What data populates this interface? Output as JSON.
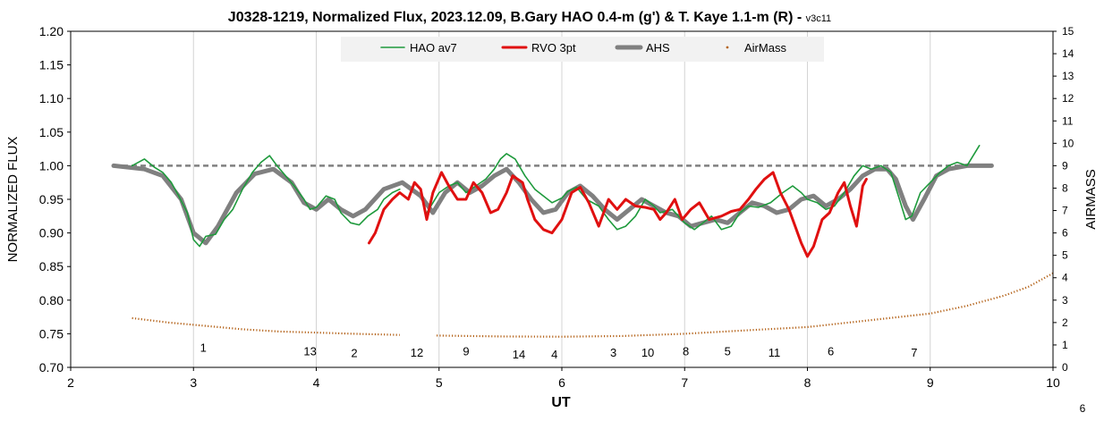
{
  "chart_data": {
    "type": "line",
    "title": "J0328-1219, Normalized Flux, 2023.12.09, B.Gary HAO 0.4-m (g') & T. Kaye 1.1-m (R)",
    "title_suffix": " - ",
    "title_version": "v3c11",
    "xlabel": "UT",
    "ylabel": "NORMALIZED FLUX",
    "y2label": "AIRMASS",
    "xlim": [
      2,
      10
    ],
    "ylim": [
      0.7,
      1.2
    ],
    "y2lim": [
      0,
      15
    ],
    "x_ticks": [
      "2",
      "3",
      "4",
      "5",
      "6",
      "7",
      "8",
      "9",
      "10"
    ],
    "y_ticks": [
      "0.70",
      "0.75",
      "0.80",
      "0.85",
      "0.90",
      "0.95",
      "1.00",
      "1.05",
      "1.10",
      "1.15",
      "1.20"
    ],
    "y2_ticks": [
      "0",
      "1",
      "2",
      "3",
      "4",
      "5",
      "6",
      "7",
      "8",
      "9",
      "10",
      "11",
      "12",
      "13",
      "14",
      "15"
    ],
    "grid": "vertical",
    "legend_position": "top-center",
    "page_number": "6",
    "reference_line": {
      "y": 1.0,
      "x": [
        2.35,
        9.5
      ]
    },
    "series": [
      {
        "name": "HAO av7",
        "color": "#1e9a3c",
        "axis": "left",
        "points": [
          [
            2.5,
            1.0
          ],
          [
            2.6,
            1.01
          ],
          [
            2.68,
            0.998
          ],
          [
            2.75,
            0.99
          ],
          [
            2.82,
            0.975
          ],
          [
            2.88,
            0.955
          ],
          [
            2.95,
            0.93
          ],
          [
            3.0,
            0.89
          ],
          [
            3.05,
            0.88
          ],
          [
            3.1,
            0.895
          ],
          [
            3.18,
            0.898
          ],
          [
            3.25,
            0.92
          ],
          [
            3.32,
            0.935
          ],
          [
            3.4,
            0.965
          ],
          [
            3.48,
            0.99
          ],
          [
            3.55,
            1.005
          ],
          [
            3.62,
            1.015
          ],
          [
            3.68,
            1.0
          ],
          [
            3.75,
            0.985
          ],
          [
            3.82,
            0.97
          ],
          [
            3.9,
            0.95
          ],
          [
            3.95,
            0.935
          ],
          [
            4.0,
            0.938
          ],
          [
            4.08,
            0.955
          ],
          [
            4.15,
            0.95
          ],
          [
            4.2,
            0.93
          ],
          [
            4.28,
            0.915
          ],
          [
            4.35,
            0.912
          ],
          [
            4.42,
            0.925
          ],
          [
            4.5,
            0.935
          ],
          [
            4.55,
            0.95
          ],
          [
            4.62,
            0.96
          ],
          [
            4.68,
            0.965
          ]
        ]
      },
      {
        "name": "HAO av7",
        "color": "#1e9a3c",
        "axis": "left",
        "points": [
          [
            4.9,
            0.93
          ],
          [
            4.95,
            0.945
          ],
          [
            5.0,
            0.96
          ],
          [
            5.08,
            0.97
          ],
          [
            5.15,
            0.975
          ],
          [
            5.22,
            0.96
          ],
          [
            5.3,
            0.97
          ],
          [
            5.38,
            0.98
          ],
          [
            5.45,
            0.995
          ],
          [
            5.5,
            1.01
          ],
          [
            5.55,
            1.018
          ],
          [
            5.62,
            1.01
          ],
          [
            5.7,
            0.985
          ],
          [
            5.78,
            0.965
          ],
          [
            5.85,
            0.955
          ],
          [
            5.92,
            0.945
          ],
          [
            6.0,
            0.952
          ],
          [
            6.05,
            0.962
          ],
          [
            6.12,
            0.968
          ],
          [
            6.2,
            0.95
          ],
          [
            6.3,
            0.94
          ],
          [
            6.38,
            0.92
          ],
          [
            6.45,
            0.905
          ],
          [
            6.52,
            0.91
          ],
          [
            6.6,
            0.925
          ],
          [
            6.68,
            0.95
          ],
          [
            6.75,
            0.94
          ],
          [
            6.8,
            0.93
          ],
          [
            6.9,
            0.935
          ],
          [
            7.0,
            0.915
          ],
          [
            7.08,
            0.905
          ],
          [
            7.15,
            0.915
          ],
          [
            7.22,
            0.925
          ],
          [
            7.3,
            0.905
          ],
          [
            7.38,
            0.91
          ],
          [
            7.45,
            0.93
          ],
          [
            7.52,
            0.94
          ],
          [
            7.6,
            0.938
          ],
          [
            7.7,
            0.945
          ],
          [
            7.8,
            0.96
          ],
          [
            7.88,
            0.97
          ],
          [
            7.95,
            0.96
          ],
          [
            8.0,
            0.95
          ],
          [
            8.08,
            0.945
          ],
          [
            8.15,
            0.935
          ],
          [
            8.22,
            0.94
          ],
          [
            8.3,
            0.96
          ],
          [
            8.38,
            0.985
          ],
          [
            8.45,
            1.0
          ],
          [
            8.52,
            0.995
          ],
          [
            8.6,
            1.0
          ],
          [
            8.68,
            0.99
          ],
          [
            8.75,
            0.95
          ],
          [
            8.8,
            0.92
          ],
          [
            8.85,
            0.925
          ],
          [
            8.92,
            0.96
          ],
          [
            9.0,
            0.975
          ],
          [
            9.08,
            0.99
          ],
          [
            9.15,
            1.0
          ],
          [
            9.22,
            1.005
          ],
          [
            9.3,
            1.0
          ],
          [
            9.35,
            1.015
          ],
          [
            9.4,
            1.03
          ]
        ]
      },
      {
        "name": "RVO 3pt",
        "color": "#e01010",
        "axis": "left",
        "points": [
          [
            4.43,
            0.885
          ],
          [
            4.48,
            0.9
          ],
          [
            4.55,
            0.935
          ],
          [
            4.62,
            0.95
          ],
          [
            4.68,
            0.96
          ],
          [
            4.75,
            0.95
          ],
          [
            4.8,
            0.975
          ],
          [
            4.85,
            0.965
          ],
          [
            4.9,
            0.92
          ],
          [
            4.95,
            0.96
          ],
          [
            5.02,
            0.99
          ],
          [
            5.08,
            0.97
          ],
          [
            5.15,
            0.95
          ],
          [
            5.22,
            0.95
          ],
          [
            5.28,
            0.975
          ],
          [
            5.35,
            0.96
          ],
          [
            5.42,
            0.93
          ],
          [
            5.48,
            0.935
          ],
          [
            5.55,
            0.96
          ],
          [
            5.6,
            0.985
          ],
          [
            5.68,
            0.975
          ],
          [
            5.72,
            0.95
          ],
          [
            5.78,
            0.92
          ],
          [
            5.85,
            0.905
          ],
          [
            5.92,
            0.9
          ],
          [
            6.0,
            0.92
          ],
          [
            6.08,
            0.96
          ],
          [
            6.15,
            0.968
          ],
          [
            6.22,
            0.945
          ],
          [
            6.3,
            0.91
          ],
          [
            6.38,
            0.95
          ],
          [
            6.45,
            0.935
          ],
          [
            6.52,
            0.95
          ],
          [
            6.6,
            0.94
          ],
          [
            6.68,
            0.938
          ],
          [
            6.75,
            0.935
          ],
          [
            6.8,
            0.92
          ],
          [
            6.85,
            0.93
          ],
          [
            6.92,
            0.95
          ],
          [
            6.98,
            0.92
          ],
          [
            7.05,
            0.935
          ],
          [
            7.12,
            0.945
          ],
          [
            7.2,
            0.92
          ],
          [
            7.3,
            0.925
          ],
          [
            7.38,
            0.932
          ],
          [
            7.45,
            0.935
          ],
          [
            7.52,
            0.95
          ],
          [
            7.58,
            0.965
          ],
          [
            7.65,
            0.98
          ],
          [
            7.72,
            0.99
          ],
          [
            7.78,
            0.96
          ],
          [
            7.85,
            0.935
          ],
          [
            7.9,
            0.91
          ],
          [
            7.95,
            0.885
          ],
          [
            8.0,
            0.865
          ],
          [
            8.05,
            0.88
          ],
          [
            8.12,
            0.92
          ],
          [
            8.18,
            0.93
          ],
          [
            8.25,
            0.96
          ],
          [
            8.3,
            0.975
          ],
          [
            8.35,
            0.94
          ],
          [
            8.4,
            0.91
          ],
          [
            8.45,
            0.97
          ],
          [
            8.48,
            0.98
          ]
        ]
      },
      {
        "name": "AHS",
        "color": "#808080",
        "axis": "left",
        "points": [
          [
            2.35,
            1.0
          ],
          [
            2.6,
            0.995
          ],
          [
            2.75,
            0.985
          ],
          [
            2.9,
            0.95
          ],
          [
            3.0,
            0.9
          ],
          [
            3.1,
            0.885
          ],
          [
            3.2,
            0.91
          ],
          [
            3.35,
            0.96
          ],
          [
            3.5,
            0.988
          ],
          [
            3.65,
            0.995
          ],
          [
            3.8,
            0.975
          ],
          [
            3.9,
            0.945
          ],
          [
            4.0,
            0.935
          ],
          [
            4.1,
            0.95
          ],
          [
            4.2,
            0.935
          ],
          [
            4.3,
            0.925
          ],
          [
            4.4,
            0.935
          ],
          [
            4.55,
            0.965
          ],
          [
            4.7,
            0.975
          ],
          [
            4.85,
            0.955
          ],
          [
            4.95,
            0.93
          ],
          [
            5.05,
            0.96
          ],
          [
            5.15,
            0.975
          ],
          [
            5.25,
            0.96
          ],
          [
            5.35,
            0.97
          ],
          [
            5.45,
            0.985
          ],
          [
            5.55,
            0.995
          ],
          [
            5.65,
            0.975
          ],
          [
            5.75,
            0.95
          ],
          [
            5.85,
            0.93
          ],
          [
            5.95,
            0.935
          ],
          [
            6.05,
            0.96
          ],
          [
            6.15,
            0.97
          ],
          [
            6.25,
            0.955
          ],
          [
            6.35,
            0.935
          ],
          [
            6.45,
            0.92
          ],
          [
            6.55,
            0.935
          ],
          [
            6.65,
            0.95
          ],
          [
            6.75,
            0.94
          ],
          [
            6.85,
            0.93
          ],
          [
            6.95,
            0.925
          ],
          [
            7.05,
            0.91
          ],
          [
            7.15,
            0.915
          ],
          [
            7.25,
            0.92
          ],
          [
            7.35,
            0.915
          ],
          [
            7.45,
            0.93
          ],
          [
            7.55,
            0.945
          ],
          [
            7.65,
            0.94
          ],
          [
            7.75,
            0.93
          ],
          [
            7.85,
            0.935
          ],
          [
            7.95,
            0.95
          ],
          [
            8.05,
            0.955
          ],
          [
            8.15,
            0.94
          ],
          [
            8.25,
            0.95
          ],
          [
            8.35,
            0.965
          ],
          [
            8.45,
            0.985
          ],
          [
            8.55,
            0.995
          ],
          [
            8.65,
            0.995
          ],
          [
            8.72,
            0.98
          ],
          [
            8.8,
            0.94
          ],
          [
            8.86,
            0.92
          ],
          [
            8.95,
            0.95
          ],
          [
            9.05,
            0.985
          ],
          [
            9.15,
            0.995
          ],
          [
            9.3,
            1.0
          ],
          [
            9.5,
            1.0
          ]
        ]
      },
      {
        "name": "AirMass",
        "color": "#b5651d",
        "axis": "right",
        "dotted": true,
        "segments": [
          [
            [
              2.5,
              2.2
            ],
            [
              2.8,
              2.0
            ],
            [
              3.1,
              1.85
            ],
            [
              3.4,
              1.7
            ],
            [
              3.7,
              1.6
            ],
            [
              4.0,
              1.55
            ],
            [
              4.3,
              1.5
            ],
            [
              4.68,
              1.45
            ]
          ],
          [
            [
              4.98,
              1.42
            ],
            [
              5.5,
              1.38
            ],
            [
              6.0,
              1.37
            ],
            [
              6.5,
              1.4
            ],
            [
              7.0,
              1.5
            ],
            [
              7.5,
              1.65
            ],
            [
              8.0,
              1.8
            ],
            [
              8.5,
              2.1
            ],
            [
              9.0,
              2.4
            ],
            [
              9.3,
              2.75
            ],
            [
              9.6,
              3.2
            ],
            [
              9.8,
              3.6
            ],
            [
              10.0,
              4.2
            ]
          ]
        ]
      }
    ],
    "annotations": [
      {
        "text": "1",
        "x": 3.08,
        "y": 0.723
      },
      {
        "text": "13",
        "x": 3.95,
        "y": 0.718
      },
      {
        "text": "2",
        "x": 4.31,
        "y": 0.715
      },
      {
        "text": "12",
        "x": 4.82,
        "y": 0.716
      },
      {
        "text": "9",
        "x": 5.22,
        "y": 0.718
      },
      {
        "text": "14",
        "x": 5.65,
        "y": 0.713
      },
      {
        "text": "4",
        "x": 5.94,
        "y": 0.713
      },
      {
        "text": "3",
        "x": 6.42,
        "y": 0.716
      },
      {
        "text": "10",
        "x": 6.7,
        "y": 0.716
      },
      {
        "text": "8",
        "x": 7.01,
        "y": 0.718
      },
      {
        "text": "5",
        "x": 7.35,
        "y": 0.718
      },
      {
        "text": "11",
        "x": 7.73,
        "y": 0.716
      },
      {
        "text": "6",
        "x": 8.19,
        "y": 0.718
      },
      {
        "text": "7",
        "x": 8.87,
        "y": 0.716
      }
    ]
  }
}
